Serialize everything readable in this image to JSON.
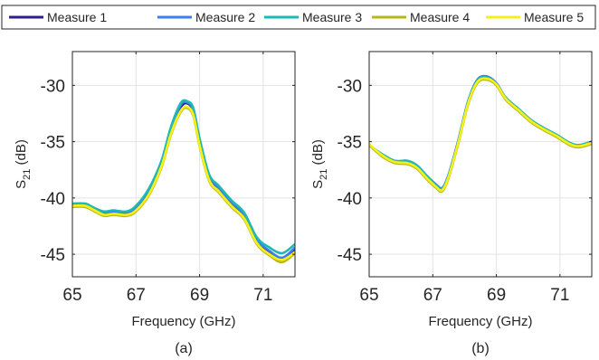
{
  "legend": {
    "placement": "top",
    "entries": [
      {
        "name": "Measure 1",
        "color": "#2e1f8c"
      },
      {
        "name": "Measure 2",
        "color": "#3d7ff0"
      },
      {
        "name": "Measure 3",
        "color": "#1fb8b4"
      },
      {
        "name": "Measure 4",
        "color": "#b8b818"
      },
      {
        "name": "Measure 5",
        "color": "#f5f01a"
      }
    ]
  },
  "chart_data": [
    {
      "type": "line",
      "caption": "(a)",
      "xlabel": "Frequency (GHz)",
      "ylabel": "S21 (dB)",
      "xlim": [
        65,
        72
      ],
      "ylim": [
        -47,
        -27
      ],
      "xticks": [
        65,
        67,
        69,
        71
      ],
      "yticks": [
        -30,
        -35,
        -40,
        -45
      ],
      "grid": true,
      "x": [
        65,
        65.4,
        65.7,
        66,
        66.3,
        66.7,
        67,
        67.4,
        67.8,
        68.1,
        68.4,
        68.6,
        68.8,
        69,
        69.3,
        69.6,
        70,
        70.4,
        70.8,
        71.2,
        71.6,
        72
      ],
      "series": [
        {
          "name": "Measure 1",
          "values": [
            -40.6,
            -40.6,
            -41,
            -41.4,
            -41.3,
            -41.4,
            -41,
            -39.5,
            -37,
            -34,
            -32,
            -31.6,
            -32.3,
            -35,
            -38.2,
            -39.2,
            -40.5,
            -41.6,
            -43.8,
            -44.9,
            -45.5,
            -44.6
          ]
        },
        {
          "name": "Measure 2",
          "values": [
            -40.6,
            -40.6,
            -41,
            -41.3,
            -41.2,
            -41.3,
            -40.9,
            -39.4,
            -36.9,
            -33.9,
            -31.8,
            -31.5,
            -32.2,
            -34.9,
            -38.1,
            -39.1,
            -40.4,
            -41.5,
            -43.7,
            -44.7,
            -45.3,
            -44.4
          ]
        },
        {
          "name": "Measure 3",
          "values": [
            -40.5,
            -40.5,
            -40.9,
            -41.2,
            -41.1,
            -41.2,
            -40.7,
            -39.2,
            -36.7,
            -33.7,
            -31.6,
            -31.4,
            -32,
            -34.7,
            -37.9,
            -38.9,
            -40.2,
            -41.3,
            -43.5,
            -44.4,
            -44.9,
            -44.1
          ]
        },
        {
          "name": "Measure 4",
          "values": [
            -40.8,
            -40.8,
            -41.2,
            -41.6,
            -41.5,
            -41.6,
            -41.2,
            -39.8,
            -37.3,
            -34.4,
            -32.4,
            -32,
            -32.7,
            -35.4,
            -38.5,
            -39.5,
            -40.8,
            -41.9,
            -44.1,
            -45.1,
            -45.7,
            -44.9
          ]
        },
        {
          "name": "Measure 5",
          "values": [
            -40.7,
            -40.7,
            -41.1,
            -41.5,
            -41.4,
            -41.5,
            -41.1,
            -39.7,
            -37.2,
            -34.3,
            -32.3,
            -31.9,
            -32.6,
            -35.3,
            -38.4,
            -39.4,
            -40.7,
            -41.8,
            -44,
            -45,
            -45.5,
            -44.8
          ]
        }
      ]
    },
    {
      "type": "line",
      "caption": "(b)",
      "xlabel": "Frequency (GHz)",
      "ylabel": "S21 (dB)",
      "xlim": [
        65,
        72
      ],
      "ylim": [
        -47,
        -27
      ],
      "xticks": [
        65,
        67,
        69,
        71
      ],
      "yticks": [
        -30,
        -35,
        -40,
        -45
      ],
      "grid": true,
      "x": [
        65,
        65.4,
        65.8,
        66.2,
        66.5,
        66.8,
        67.1,
        67.3,
        67.5,
        67.8,
        68.1,
        68.4,
        68.7,
        69,
        69.3,
        69.7,
        70.1,
        70.5,
        70.9,
        71.3,
        71.6,
        72
      ],
      "series": [
        {
          "name": "Measure 1",
          "values": [
            -35.3,
            -36.2,
            -36.8,
            -36.8,
            -37.2,
            -38.1,
            -38.9,
            -39.2,
            -38,
            -35,
            -31.6,
            -29.6,
            -29.3,
            -29.9,
            -31.2,
            -32.2,
            -33.2,
            -33.9,
            -34.5,
            -35.2,
            -35.4,
            -35.1
          ]
        },
        {
          "name": "Measure 2",
          "values": [
            -35.3,
            -36.1,
            -36.7,
            -36.7,
            -37.1,
            -38,
            -38.8,
            -39.1,
            -37.9,
            -34.9,
            -31.5,
            -29.5,
            -29.2,
            -29.8,
            -31.1,
            -32.1,
            -33.1,
            -33.8,
            -34.4,
            -35.1,
            -35.3,
            -35
          ]
        },
        {
          "name": "Measure 3",
          "values": [
            -35.3,
            -36.1,
            -36.7,
            -36.7,
            -37.1,
            -38,
            -38.9,
            -39.2,
            -38,
            -35,
            -31.6,
            -29.6,
            -29.3,
            -29.9,
            -31.1,
            -32.1,
            -33.1,
            -33.8,
            -34.4,
            -35.1,
            -35.3,
            -35
          ]
        },
        {
          "name": "Measure 4",
          "values": [
            -35.3,
            -36.3,
            -36.9,
            -37,
            -37.4,
            -38.3,
            -39.1,
            -39.4,
            -38.2,
            -35.2,
            -31.8,
            -29.8,
            -29.5,
            -30,
            -31.3,
            -32.3,
            -33.3,
            -34,
            -34.6,
            -35.3,
            -35.5,
            -35.2
          ]
        },
        {
          "name": "Measure 5",
          "values": [
            -35.2,
            -36.2,
            -36.8,
            -36.9,
            -37.3,
            -38.2,
            -39,
            -39.3,
            -38.1,
            -35.1,
            -31.7,
            -29.7,
            -29.4,
            -29.9,
            -31.2,
            -32.2,
            -33.2,
            -33.9,
            -34.5,
            -35.2,
            -35.4,
            -35.1
          ]
        }
      ]
    }
  ]
}
